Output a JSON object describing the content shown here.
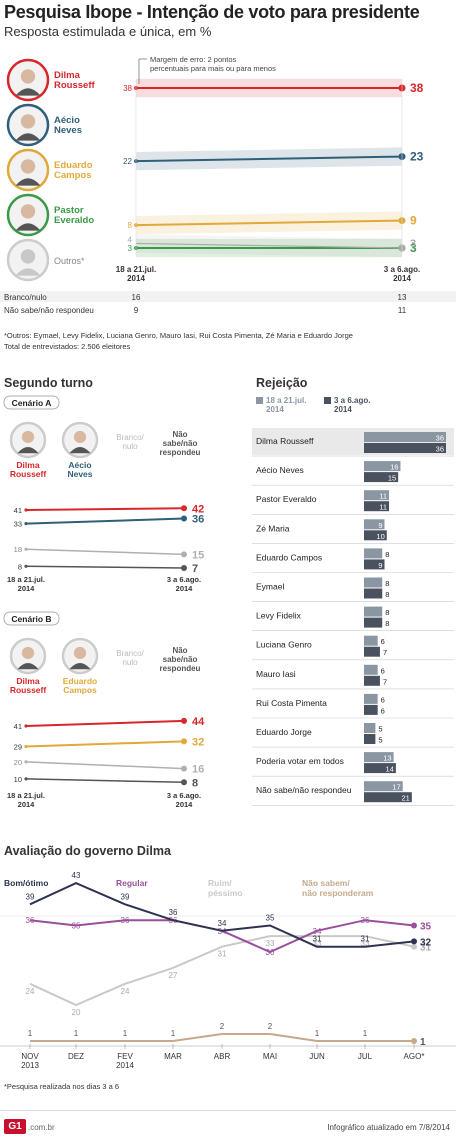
{
  "header": {
    "title": "Pesquisa Ibope - Intenção de voto para presidente",
    "subtitle": "Resposta estimulada e única, em %"
  },
  "colors": {
    "dilma": "#d9262b",
    "aecio": "#2f5f7a",
    "eduardo": "#e0a93a",
    "pastor": "#3a9a47",
    "outros": "#aaaaaa",
    "gray_dark": "#555555",
    "gray_light": "#b0b0b0",
    "rej_old": "#8a97a3",
    "rej_new": "#4a5260",
    "eval_bom": "#2d3350",
    "eval_regular": "#9a4f9c",
    "eval_ruim": "#c9c9c9",
    "eval_nao": "#c6a98a"
  },
  "first_round": {
    "margin_note": "Margem de erro: 2 pontos percentuais para mais ou para menos",
    "candidates": [
      {
        "first": "Dilma",
        "last": "Rousseff",
        "start": "38",
        "end": "38"
      },
      {
        "first": "Aécio",
        "last": "Neves",
        "start": "22",
        "end": "23"
      },
      {
        "first": "Eduardo",
        "last": "Campos",
        "start": "8",
        "end": "9"
      },
      {
        "first": "Pastor",
        "last": "Everaldo",
        "start": "3",
        "end": "3"
      }
    ],
    "outros_label": "Outros*",
    "outros_start": "4",
    "outros_end": "3",
    "date_start": "18 a 21.jul.\n2014",
    "date_end": "3 a 6.ago.\n2014",
    "branco_label": "Branco/nulo",
    "branco_start": "16",
    "branco_end": "13",
    "nao_sabe_label": "Não sabe/não respondeu",
    "nao_sabe_start": "9",
    "nao_sabe_end": "11",
    "footnote1": "*Outros: Eymael, Levy Fidelix, Luciana Genro, Mauro Iasi, Rui Costa Pimenta, Zé Maria e Eduardo Jorge",
    "footnote2": "Total de entrevistados: 2.506 eleitores"
  },
  "second_round": {
    "title": "Segundo turno",
    "branco_label": "Branco/\nnulo",
    "nao_sabe_label": "Não\nsabe/não\nrespondeu",
    "date_start": "18 a 21.jul.\n2014",
    "date_end": "3 a 6.ago.\n2014",
    "scenarios": [
      {
        "name": "Cenário A",
        "c1_first": "Dilma",
        "c1_last": "Rousseff",
        "c2_first": "Aécio",
        "c2_last": "Neves",
        "c1_start": "41",
        "c1_end": "42",
        "c2_start": "33",
        "c2_end": "36",
        "branco_start": "18",
        "branco_end": "15",
        "ns_start": "8",
        "ns_end": "7"
      },
      {
        "name": "Cenário B",
        "c1_first": "Dilma",
        "c1_last": "Rousseff",
        "c2_first": "Eduardo",
        "c2_last": "Campos",
        "c1_start": "41",
        "c1_end": "44",
        "c2_start": "29",
        "c2_end": "32",
        "branco_start": "20",
        "branco_end": "16",
        "ns_start": "10",
        "ns_end": "8"
      }
    ]
  },
  "rejection": {
    "title": "Rejeição",
    "legend_old": "18 a 21.jul.\n2014",
    "legend_new": "3 a 6.ago.\n2014"
  },
  "evaluation": {
    "title": "Avaliação do governo Dilma",
    "legend": [
      "Bom/ótimo",
      "Regular",
      "Ruim/\npéssimo",
      "Não sabem/\nnão responderam"
    ],
    "months": [
      "NOV\n2013",
      "DEZ",
      "FEV\n2014",
      "MAR",
      "ABR",
      "MAI",
      "JUN",
      "JUL",
      "AGO*"
    ],
    "footnote": "*Pesquisa realizada nos dias 3 a 6"
  },
  "footer": {
    "logo": "G1",
    "site": ".com.br",
    "updated": "Infográfico atualizado em 7/8/2014"
  },
  "chart_data": [
    {
      "type": "line",
      "title": "Pesquisa Ibope - Intenção de voto para presidente",
      "subtitle": "Resposta estimulada e única, em %",
      "x": [
        "18 a 21.jul. 2014",
        "3 a 6.ago. 2014"
      ],
      "series": [
        {
          "name": "Dilma Rousseff",
          "values": [
            38,
            38
          ]
        },
        {
          "name": "Aécio Neves",
          "values": [
            22,
            23
          ]
        },
        {
          "name": "Eduardo Campos",
          "values": [
            8,
            9
          ]
        },
        {
          "name": "Pastor Everaldo",
          "values": [
            3,
            3
          ]
        },
        {
          "name": "Outros*",
          "values": [
            4,
            3
          ]
        }
      ],
      "table": [
        {
          "name": "Branco/nulo",
          "values": [
            16,
            13
          ]
        },
        {
          "name": "Não sabe/não respondeu",
          "values": [
            9,
            11
          ]
        }
      ]
    },
    {
      "type": "line",
      "title": "Segundo turno - Cenário A",
      "x": [
        "18 a 21.jul. 2014",
        "3 a 6.ago. 2014"
      ],
      "series": [
        {
          "name": "Dilma Rousseff",
          "values": [
            41,
            42
          ]
        },
        {
          "name": "Aécio Neves",
          "values": [
            33,
            36
          ]
        },
        {
          "name": "Branco/nulo",
          "values": [
            18,
            15
          ]
        },
        {
          "name": "Não sabe/não respondeu",
          "values": [
            8,
            7
          ]
        }
      ]
    },
    {
      "type": "line",
      "title": "Segundo turno - Cenário B",
      "x": [
        "18 a 21.jul. 2014",
        "3 a 6.ago. 2014"
      ],
      "series": [
        {
          "name": "Dilma Rousseff",
          "values": [
            41,
            44
          ]
        },
        {
          "name": "Eduardo Campos",
          "values": [
            29,
            32
          ]
        },
        {
          "name": "Branco/nulo",
          "values": [
            20,
            16
          ]
        },
        {
          "name": "Não sabe/não respondeu",
          "values": [
            10,
            8
          ]
        }
      ]
    },
    {
      "type": "bar",
      "title": "Rejeição",
      "categories": [
        "Dilma Rousseff",
        "Aécio Neves",
        "Pastor Everaldo",
        "Zé Maria",
        "Eduardo Campos",
        "Eymael",
        "Levy Fidelix",
        "Luciana Genro",
        "Mauro Iasi",
        "Rui Costa Pimenta",
        "Eduardo Jorge",
        "Poderia votar em todos",
        "Não sabe/não respondeu"
      ],
      "series": [
        {
          "name": "18 a 21.jul. 2014",
          "values": [
            36,
            16,
            11,
            9,
            8,
            8,
            8,
            6,
            6,
            6,
            5,
            13,
            17
          ]
        },
        {
          "name": "3 a 6.ago. 2014",
          "values": [
            36,
            15,
            11,
            10,
            9,
            8,
            8,
            7,
            7,
            6,
            5,
            14,
            21
          ]
        }
      ]
    },
    {
      "type": "line",
      "title": "Avaliação do governo Dilma",
      "categories": [
        "NOV 2013",
        "DEZ",
        "FEV 2014",
        "MAR",
        "ABR",
        "MAI",
        "JUN",
        "JUL",
        "AGO*"
      ],
      "series": [
        {
          "name": "Bom/ótimo",
          "values": [
            39,
            43,
            39,
            36,
            34,
            35,
            31,
            31,
            32
          ]
        },
        {
          "name": "Regular",
          "values": [
            36,
            35,
            36,
            36,
            34,
            30,
            34,
            36,
            35
          ]
        },
        {
          "name": "Ruim/péssimo",
          "values": [
            24,
            20,
            24,
            27,
            31,
            33,
            33,
            33,
            31
          ]
        },
        {
          "name": "Não sabem/não responderam",
          "values": [
            1,
            1,
            1,
            1,
            2,
            2,
            1,
            1,
            1
          ]
        }
      ]
    }
  ]
}
